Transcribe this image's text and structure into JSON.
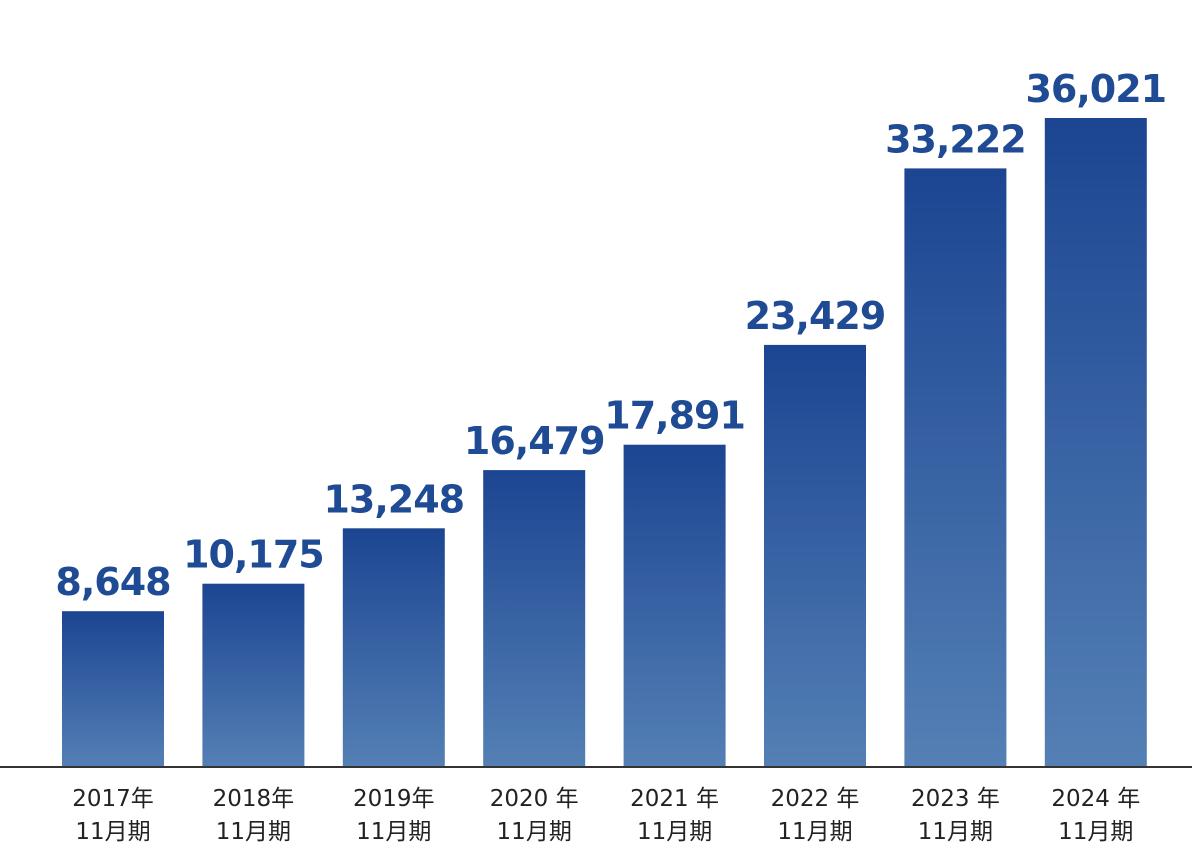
{
  "chart_data": {
    "type": "bar",
    "categories": [
      {
        "line1": "2017年",
        "line2": "11月期"
      },
      {
        "line1": "2018年",
        "line2": "11月期"
      },
      {
        "line1": "2019年",
        "line2": "11月期"
      },
      {
        "line1": "2020 年",
        "line2": "11月期"
      },
      {
        "line1": "2021 年",
        "line2": "11月期"
      },
      {
        "line1": "2022 年",
        "line2": "11月期"
      },
      {
        "line1": "2023 年",
        "line2": "11月期"
      },
      {
        "line1": "2024 年",
        "line2": "11月期"
      }
    ],
    "values": [
      8648,
      10175,
      13248,
      16479,
      17891,
      23429,
      33222,
      36021
    ],
    "value_labels": [
      "8,648",
      "10,175",
      "13,248",
      "16,479",
      "17,891",
      "23,429",
      "33,222",
      "36,021"
    ],
    "title": "",
    "xlabel": "",
    "ylabel": "",
    "ylim": [
      0,
      36021
    ],
    "grid": false,
    "legend": "none",
    "colors": {
      "bar_top": "#1c4592",
      "bar_bottom": "#5480b5",
      "label": "#1f4a94",
      "axis": "#333333",
      "tick_text": "#222222"
    }
  }
}
